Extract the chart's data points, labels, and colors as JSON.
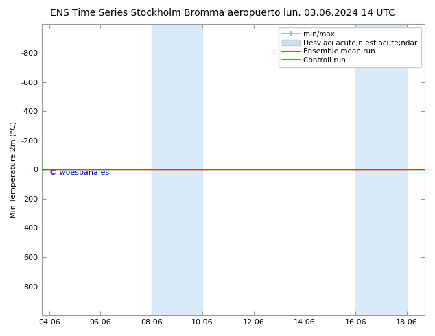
{
  "title": "ENS Time Series Stockholm Bromma aeropuerto",
  "date_label": "lun. 03.06.2024 14 UTC",
  "ylabel": "Min Temperature 2m (°C)",
  "watermark": "© woespana.es",
  "background_color": "#ffffff",
  "plot_bg_color": "#ffffff",
  "ylim_top": -1000,
  "ylim_bottom": 1000,
  "yticks": [
    -800,
    -600,
    -400,
    -200,
    0,
    200,
    400,
    600,
    800
  ],
  "xtick_labels": [
    "04.06",
    "06.06",
    "08.06",
    "10.06",
    "12.06",
    "14.06",
    "16.06",
    "18.06"
  ],
  "xtick_positions": [
    0,
    2,
    4,
    6,
    8,
    10,
    12,
    14
  ],
  "xmin": -0.3,
  "xmax": 14.7,
  "shaded_bands": [
    {
      "x_start": 4.0,
      "x_end": 5.0,
      "color": "#daeaf8"
    },
    {
      "x_start": 5.0,
      "x_end": 6.0,
      "color": "#daeaf8"
    },
    {
      "x_start": 12.0,
      "x_end": 13.0,
      "color": "#daeaf8"
    },
    {
      "x_start": 13.0,
      "x_end": 14.0,
      "color": "#daeaf8"
    }
  ],
  "green_line_y": 0,
  "red_line_y": 0,
  "green_line_color": "#00aa00",
  "red_line_color": "#ff0000",
  "watermark_color": "#0000cc",
  "title_fontsize": 10,
  "date_fontsize": 10,
  "axis_fontsize": 8,
  "tick_fontsize": 8,
  "legend_label_minmax": "min/max",
  "legend_label_std": "Desviaci acute;n est acute;ndar",
  "legend_label_ens": "Ensemble mean run",
  "legend_label_ctrl": "Controll run",
  "legend_minmax_color": "#aaaaaa",
  "legend_std_color": "#cce0f0",
  "spine_color": "#999999"
}
